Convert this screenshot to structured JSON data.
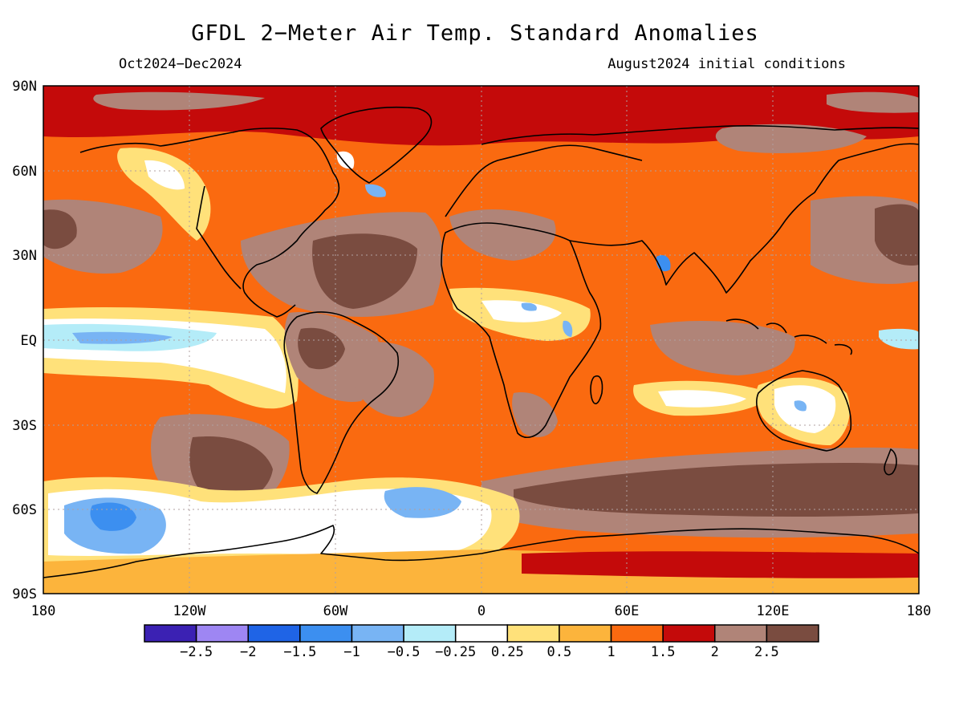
{
  "title": "GFDL 2−Meter Air Temp. Standard Anomalies",
  "period": "Oct2024−Dec2024",
  "initial_conditions": "August2024 initial conditions",
  "lat_labels": [
    "90N",
    "60N",
    "30N",
    "EQ",
    "30S",
    "60S",
    "90S"
  ],
  "lon_labels": [
    "180",
    "120W",
    "60W",
    "0",
    "60E",
    "120E",
    "180"
  ],
  "colorbar": {
    "colors": [
      "#3b21b3",
      "#9e86f3",
      "#1f64e6",
      "#3c8ff0",
      "#78b4f4",
      "#b4ecf8",
      "#ffffff",
      "#ffe17a",
      "#fcb43c",
      "#fa6a10",
      "#c40a0a",
      "#b08478",
      "#7a4c40"
    ],
    "labels": [
      "−2.5",
      "−2",
      "−1.5",
      "−1",
      "−0.5",
      "−0.25",
      "0.25",
      "0.5",
      "1",
      "1.5",
      "2",
      "2.5"
    ]
  },
  "palette": {
    "background": "#fa6a10",
    "coast": "#000000",
    "grid": "#b0a0a0"
  }
}
